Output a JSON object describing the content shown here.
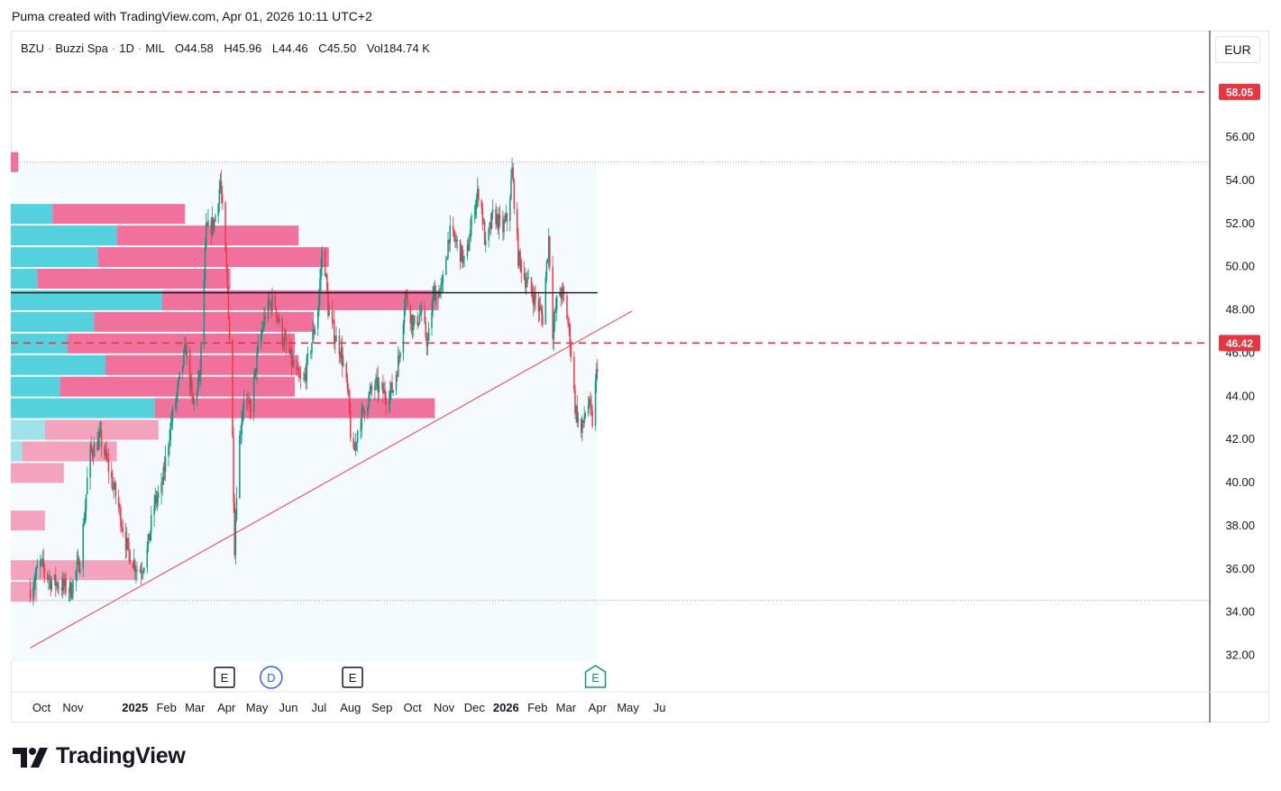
{
  "header": {
    "credit": "Puma created with TradingView.com, Apr 01, 2026 10:11 UTC+2"
  },
  "legend": {
    "symbol": "BZU",
    "name": "Buzzi Spa",
    "interval": "1D",
    "exchange": "MIL",
    "o_label": "O",
    "o": "44.58",
    "h_label": "H",
    "h": "45.96",
    "l_label": "L",
    "l": "44.46",
    "c_label": "C",
    "c": "45.50",
    "vol_label": "Vol",
    "vol": "184.74 K",
    "separator": "·"
  },
  "currency_button": "EUR",
  "brand": {
    "name": "TradingView"
  },
  "colors": {
    "up": "#089981",
    "down": "#f23645",
    "dashed_level": "#e8353f",
    "trend": "#f05b5b",
    "vp_up": "#55d0dd",
    "vp_down": "#f0719b",
    "vp_up_light": "#9ee3ea",
    "vp_down_light": "#f4a3bf",
    "vp_bg": "#f4fafd",
    "hline": "#131722"
  },
  "chart_data": {
    "type": "candlestick",
    "symbol": "BZU",
    "y_ticks": [
      "32.00",
      "34.00",
      "36.00",
      "38.00",
      "40.00",
      "42.00",
      "44.00",
      "46.00",
      "48.00",
      "50.00",
      "52.00",
      "54.00",
      "56.00"
    ],
    "x_ticks": [
      {
        "label": "Oct",
        "date": "2024-10-01",
        "bold": false
      },
      {
        "label": "Nov",
        "date": "2024-11-01",
        "bold": false
      },
      {
        "label": "2025",
        "date": "2025-01-01",
        "bold": true
      },
      {
        "label": "Feb",
        "date": "2025-02-01",
        "bold": false
      },
      {
        "label": "Mar",
        "date": "2025-03-01",
        "bold": false
      },
      {
        "label": "Apr",
        "date": "2025-04-01",
        "bold": false
      },
      {
        "label": "May",
        "date": "2025-05-01",
        "bold": false
      },
      {
        "label": "Jun",
        "date": "2025-06-01",
        "bold": false
      },
      {
        "label": "Jul",
        "date": "2025-07-01",
        "bold": false
      },
      {
        "label": "Aug",
        "date": "2025-08-01",
        "bold": false
      },
      {
        "label": "Sep",
        "date": "2025-09-01",
        "bold": false
      },
      {
        "label": "Oct",
        "date": "2025-10-01",
        "bold": false
      },
      {
        "label": "Nov",
        "date": "2025-11-01",
        "bold": false
      },
      {
        "label": "Dec",
        "date": "2025-12-01",
        "bold": false
      },
      {
        "label": "2026",
        "date": "2026-01-01",
        "bold": true
      },
      {
        "label": "Feb",
        "date": "2026-02-01",
        "bold": false
      },
      {
        "label": "Mar",
        "date": "2026-03-01",
        "bold": false
      },
      {
        "label": "Apr",
        "date": "2026-04-01",
        "bold": false
      },
      {
        "label": "May",
        "date": "2026-05-01",
        "bold": false
      },
      {
        "label": "Ju",
        "date": "2026-06-01",
        "bold": false
      }
    ],
    "price_levels": [
      {
        "value": 58.05,
        "label": "58.05",
        "style": "dashed"
      },
      {
        "value": 46.42,
        "label": "46.42",
        "style": "dashed"
      }
    ],
    "horizontal_line": {
      "value": 48.75,
      "from": "2024-09-20",
      "to": "2026-04-01"
    },
    "trendline": {
      "start": {
        "date": "2024-09-20",
        "price": 32.3
      },
      "end": {
        "date": "2026-05-05",
        "price": 47.9
      }
    },
    "dotted_range": {
      "high": 54.8,
      "low": 34.5
    },
    "events": [
      {
        "label": "E",
        "date": "2025-03-30",
        "kind": "earnings"
      },
      {
        "label": "D",
        "date": "2025-05-15",
        "kind": "dividend"
      },
      {
        "label": "E",
        "date": "2025-08-03",
        "kind": "earnings"
      },
      {
        "label": "E",
        "date": "2026-03-30",
        "kind": "earnings-upcoming"
      }
    ],
    "volume_profile": [
      {
        "price": 54.8,
        "up": 0.0,
        "down": 0.02,
        "light": false
      },
      {
        "price": 52.4,
        "up": 0.11,
        "down": 0.35,
        "light": false
      },
      {
        "price": 51.4,
        "up": 0.28,
        "down": 0.48,
        "light": false
      },
      {
        "price": 50.4,
        "up": 0.23,
        "down": 0.61,
        "light": false
      },
      {
        "price": 49.4,
        "up": 0.07,
        "down": 0.51,
        "light": false
      },
      {
        "price": 48.4,
        "up": 0.4,
        "down": 0.73,
        "light": false
      },
      {
        "price": 47.4,
        "up": 0.22,
        "down": 0.58,
        "light": false
      },
      {
        "price": 46.4,
        "up": 0.15,
        "down": 0.6,
        "light": false
      },
      {
        "price": 45.4,
        "up": 0.25,
        "down": 0.51,
        "light": false
      },
      {
        "price": 44.4,
        "up": 0.13,
        "down": 0.62,
        "light": false
      },
      {
        "price": 43.4,
        "up": 0.38,
        "down": 0.74,
        "light": false
      },
      {
        "price": 42.4,
        "up": 0.09,
        "down": 0.3,
        "light": true
      },
      {
        "price": 41.4,
        "up": 0.03,
        "down": 0.25,
        "light": true
      },
      {
        "price": 40.4,
        "up": 0.0,
        "down": 0.14,
        "light": true
      },
      {
        "price": 38.2,
        "up": 0.0,
        "down": 0.09,
        "light": true
      },
      {
        "price": 35.9,
        "up": 0.0,
        "down": 0.33,
        "light": true
      },
      {
        "price": 34.9,
        "up": 0.0,
        "down": 0.07,
        "light": true
      }
    ],
    "price_path": [
      [
        "2024-09-20",
        35.0
      ],
      [
        "2024-09-30",
        36.2
      ],
      [
        "2024-10-10",
        35.4
      ],
      [
        "2024-10-20",
        35.2
      ],
      [
        "2024-10-30",
        35.0
      ],
      [
        "2024-11-08",
        36.4
      ],
      [
        "2024-11-13",
        38.8
      ],
      [
        "2024-11-17",
        41.3
      ],
      [
        "2024-11-28",
        42.0
      ],
      [
        "2024-12-05",
        40.8
      ],
      [
        "2024-12-15",
        39.0
      ],
      [
        "2024-12-25",
        36.8
      ],
      [
        "2025-01-05",
        35.8
      ],
      [
        "2025-01-12",
        36.5
      ],
      [
        "2025-01-20",
        39.0
      ],
      [
        "2025-01-27",
        39.6
      ],
      [
        "2025-02-05",
        42.6
      ],
      [
        "2025-02-12",
        44.2
      ],
      [
        "2025-02-20",
        46.2
      ],
      [
        "2025-02-27",
        43.5
      ],
      [
        "2025-03-06",
        45.0
      ],
      [
        "2025-03-12",
        51.6
      ],
      [
        "2025-03-20",
        52.0
      ],
      [
        "2025-03-26",
        53.9
      ],
      [
        "2025-04-02",
        49.0
      ],
      [
        "2025-04-06",
        44.4
      ],
      [
        "2025-04-09",
        37.0
      ],
      [
        "2025-04-12",
        41.0
      ],
      [
        "2025-04-18",
        44.0
      ],
      [
        "2025-04-24",
        43.2
      ],
      [
        "2025-05-02",
        46.0
      ],
      [
        "2025-05-10",
        48.0
      ],
      [
        "2025-05-18",
        48.4
      ],
      [
        "2025-05-25",
        46.8
      ],
      [
        "2025-06-01",
        46.0
      ],
      [
        "2025-06-08",
        45.0
      ],
      [
        "2025-06-15",
        44.4
      ],
      [
        "2025-06-22",
        46.0
      ],
      [
        "2025-06-30",
        48.0
      ],
      [
        "2025-07-05",
        51.2
      ],
      [
        "2025-07-10",
        48.0
      ],
      [
        "2025-07-16",
        46.8
      ],
      [
        "2025-07-23",
        46.0
      ],
      [
        "2025-07-30",
        43.8
      ],
      [
        "2025-08-03",
        40.8
      ],
      [
        "2025-08-08",
        42.4
      ],
      [
        "2025-08-16",
        43.6
      ],
      [
        "2025-08-25",
        44.5
      ],
      [
        "2025-09-05",
        44.0
      ],
      [
        "2025-09-12",
        44.3
      ],
      [
        "2025-09-18",
        45.8
      ],
      [
        "2025-09-24",
        48.7
      ],
      [
        "2025-10-02",
        47.2
      ],
      [
        "2025-10-09",
        47.8
      ],
      [
        "2025-10-16",
        46.4
      ],
      [
        "2025-10-22",
        48.8
      ],
      [
        "2025-10-30",
        48.9
      ],
      [
        "2025-11-06",
        51.5
      ],
      [
        "2025-11-14",
        51.0
      ],
      [
        "2025-11-22",
        50.0
      ],
      [
        "2025-11-30",
        52.6
      ],
      [
        "2025-12-06",
        53.6
      ],
      [
        "2025-12-12",
        50.8
      ],
      [
        "2025-12-20",
        52.5
      ],
      [
        "2025-12-28",
        51.6
      ],
      [
        "2026-01-03",
        52.3
      ],
      [
        "2026-01-07",
        54.4
      ],
      [
        "2026-01-13",
        50.4
      ],
      [
        "2026-01-20",
        49.4
      ],
      [
        "2026-01-28",
        48.6
      ],
      [
        "2026-02-06",
        47.6
      ],
      [
        "2026-02-12",
        51.3
      ],
      [
        "2026-02-16",
        47.0
      ],
      [
        "2026-02-22",
        48.9
      ],
      [
        "2026-02-28",
        48.4
      ],
      [
        "2026-03-05",
        46.6
      ],
      [
        "2026-03-10",
        43.5
      ],
      [
        "2026-03-16",
        42.2
      ],
      [
        "2026-03-22",
        43.8
      ],
      [
        "2026-03-27",
        42.8
      ],
      [
        "2026-04-01",
        45.5
      ]
    ]
  }
}
